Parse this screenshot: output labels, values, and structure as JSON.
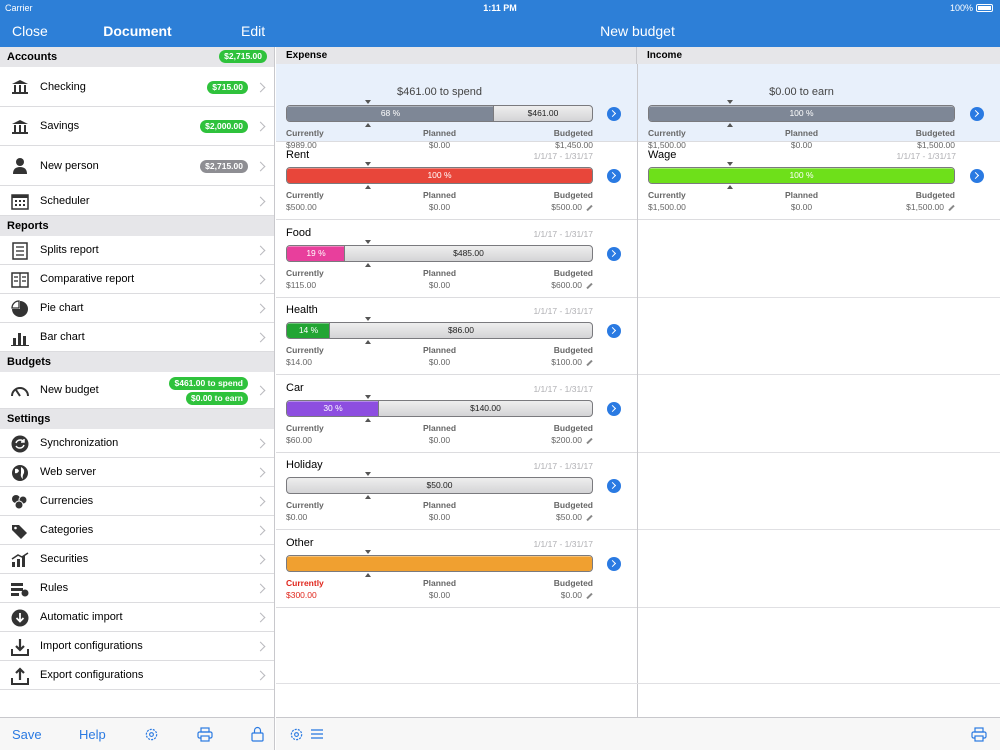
{
  "status_bar": {
    "carrier": "Carrier",
    "time": "1:11 PM",
    "battery": "100%"
  },
  "nav": {
    "close": "Close",
    "document": "Document",
    "edit": "Edit",
    "title": "New budget"
  },
  "sidebar": {
    "accounts": {
      "title": "Accounts",
      "total": "$2,715.00",
      "items": [
        {
          "label": "Checking",
          "amount": "$715.00",
          "icon": "bank-icon"
        },
        {
          "label": "Savings",
          "amount": "$2,000.00",
          "icon": "bank-icon"
        },
        {
          "label": "New person",
          "amount": "$2,715.00",
          "icon": "person-icon"
        },
        {
          "label": "Scheduler",
          "icon": "calendar-icon"
        }
      ]
    },
    "reports": {
      "title": "Reports",
      "items": [
        {
          "label": "Splits report",
          "icon": "report-icon"
        },
        {
          "label": "Comparative report",
          "icon": "comparative-report-icon"
        },
        {
          "label": "Pie chart",
          "icon": "pie-chart-icon"
        },
        {
          "label": "Bar chart",
          "icon": "bar-chart-icon"
        }
      ]
    },
    "budgets": {
      "title": "Budgets",
      "items": [
        {
          "label": "New budget",
          "spend": "$461.00 to spend",
          "earn": "$0.00 to earn",
          "icon": "gauge-icon"
        }
      ]
    },
    "settings": {
      "title": "Settings",
      "items": [
        {
          "label": "Synchronization",
          "icon": "sync-icon"
        },
        {
          "label": "Web server",
          "icon": "globe-icon"
        },
        {
          "label": "Currencies",
          "icon": "coins-icon"
        },
        {
          "label": "Categories",
          "icon": "tags-icon"
        },
        {
          "label": "Securities",
          "icon": "securities-icon"
        },
        {
          "label": "Rules",
          "icon": "rules-icon"
        },
        {
          "label": "Automatic import",
          "icon": "download-circle-icon"
        },
        {
          "label": "Import configurations",
          "icon": "import-icon"
        },
        {
          "label": "Export configurations",
          "icon": "export-icon"
        }
      ]
    },
    "bottom": {
      "save": "Save",
      "help": "Help"
    }
  },
  "budget": {
    "expense_title": "Expense",
    "income_title": "Income",
    "labels": {
      "currently": "Currently",
      "planned": "Planned",
      "budgeted": "Budgeted"
    },
    "expense_summary": {
      "heading": "$461.00 to spend",
      "percent_text": "68 %",
      "remaining_text": "$461.00",
      "progress": 0.68,
      "currently": "$989.00",
      "planned": "$0.00",
      "budgeted": "$1,450.00"
    },
    "income_summary": {
      "heading": "$0.00 to earn",
      "percent_text": "100 %",
      "progress": 1.0,
      "currently": "$1,500.00",
      "planned": "$0.00",
      "budgeted": "$1,500.00"
    },
    "expenses": [
      {
        "name": "Rent",
        "date": "1/1/17 - 1/31/17",
        "percent_text": "100 %",
        "remaining_text": "",
        "progress": 1.0,
        "color": "#e8463a",
        "currently": "$500.00",
        "planned": "$0.00",
        "budgeted": "$500.00",
        "over": false
      },
      {
        "name": "Food",
        "date": "1/1/17 - 1/31/17",
        "percent_text": "19 %",
        "remaining_text": "$485.00",
        "progress": 0.19,
        "color": "#e83f9c",
        "currently": "$115.00",
        "planned": "$0.00",
        "budgeted": "$600.00",
        "over": false
      },
      {
        "name": "Health",
        "date": "1/1/17 - 1/31/17",
        "percent_text": "14 %",
        "remaining_text": "$86.00",
        "progress": 0.14,
        "color": "#22a533",
        "currently": "$14.00",
        "planned": "$0.00",
        "budgeted": "$100.00",
        "over": false
      },
      {
        "name": "Car",
        "date": "1/1/17 - 1/31/17",
        "percent_text": "30 %",
        "remaining_text": "$140.00",
        "progress": 0.3,
        "color": "#8d4ee0",
        "currently": "$60.00",
        "planned": "$0.00",
        "budgeted": "$200.00",
        "over": false
      },
      {
        "name": "Holiday",
        "date": "1/1/17 - 1/31/17",
        "percent_text": "",
        "remaining_text": "$50.00",
        "progress": 0.0,
        "color": "#aaaaaa",
        "currently": "$0.00",
        "planned": "$0.00",
        "budgeted": "$50.00",
        "over": false
      },
      {
        "name": "Other",
        "date": "1/1/17 - 1/31/17",
        "percent_text": "",
        "remaining_text": "",
        "progress": 1.0,
        "color": "#f0a030",
        "currently": "$300.00",
        "planned": "$0.00",
        "budgeted": "$0.00",
        "over": true
      }
    ],
    "incomes": [
      {
        "name": "Wage",
        "date": "1/1/17 - 1/31/17",
        "percent_text": "100 %",
        "progress": 1.0,
        "color": "#6ee01a",
        "currently": "$1,500.00",
        "planned": "$0.00",
        "budgeted": "$1,500.00"
      }
    ]
  },
  "colors": {
    "accent": "#2d7fd7",
    "link": "#2a7ae2",
    "badge_green": "#2fc23c",
    "badge_grey": "#8e8e93",
    "summary_bar": "#7e8796",
    "over_budget": "#e0261c"
  }
}
